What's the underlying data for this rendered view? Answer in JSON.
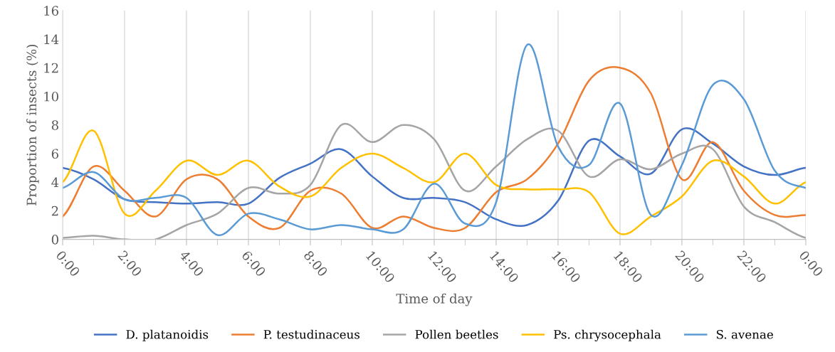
{
  "chart_data": {
    "type": "line",
    "xlabel": "Time of day",
    "ylabel": "Proportion of insects (%)",
    "categories": [
      "0:00",
      null,
      "2:00",
      null,
      "4:00",
      null,
      "6:00",
      null,
      "8:00",
      null,
      "10:00",
      null,
      "12:00",
      null,
      "14:00",
      null,
      "16:00",
      null,
      "18:00",
      null,
      "20:00",
      null,
      "22:00",
      null,
      "0:00"
    ],
    "ylim": [
      0,
      16
    ],
    "yticks": [
      0,
      2,
      4,
      6,
      8,
      10,
      12,
      14,
      16
    ],
    "grid": "x",
    "legend": "bottom",
    "marker": "none",
    "line_style": "solid",
    "series": [
      {
        "name": "D. platanoidis",
        "color": "#4472c4",
        "values": [
          5.0,
          4.2,
          2.8,
          2.6,
          2.5,
          2.6,
          2.5,
          4.3,
          5.3,
          6.3,
          4.4,
          2.9,
          2.9,
          2.6,
          1.4,
          1.0,
          2.7,
          6.9,
          5.8,
          4.6,
          7.7,
          6.7,
          5.1,
          4.5,
          5.0
        ]
      },
      {
        "name": "P. testudinaceus",
        "color": "#ed7d31",
        "values": [
          1.6,
          5.1,
          3.4,
          1.6,
          4.2,
          4.2,
          1.6,
          0.8,
          3.4,
          3.2,
          0.8,
          1.6,
          0.8,
          0.8,
          3.3,
          4.2,
          6.7,
          11.1,
          12.0,
          10.2,
          4.2,
          6.8,
          3.4,
          1.7,
          1.7
        ]
      },
      {
        "name": "Pollen beetles",
        "color": "#a5a5a5",
        "values": [
          0.1,
          0.25,
          0,
          0,
          1.0,
          1.8,
          3.6,
          3.2,
          3.8,
          8.0,
          6.8,
          8.0,
          7.0,
          3.4,
          5.1,
          7.0,
          7.6,
          4.4,
          5.6,
          4.9,
          6.0,
          6.3,
          2.3,
          1.2,
          0.1
        ]
      },
      {
        "name": "Ps. chrysocephala",
        "color": "#ffc000",
        "values": [
          4.0,
          7.6,
          1.8,
          3.4,
          5.5,
          4.5,
          5.5,
          3.7,
          3.0,
          5.0,
          6.0,
          5.0,
          4.0,
          6.0,
          3.8,
          3.5,
          3.5,
          3.3,
          0.4,
          1.6,
          3.0,
          5.5,
          4.4,
          2.5,
          4.0
        ]
      },
      {
        "name": "S. avenae",
        "color": "#5b9bd5",
        "values": [
          3.6,
          4.7,
          2.8,
          2.9,
          2.9,
          0.3,
          1.8,
          1.4,
          0.7,
          1.0,
          0.7,
          0.7,
          3.9,
          1.1,
          2.6,
          13.6,
          6.5,
          5.2,
          9.5,
          1.7,
          5.2,
          10.8,
          9.8,
          4.8,
          3.6
        ]
      }
    ]
  }
}
